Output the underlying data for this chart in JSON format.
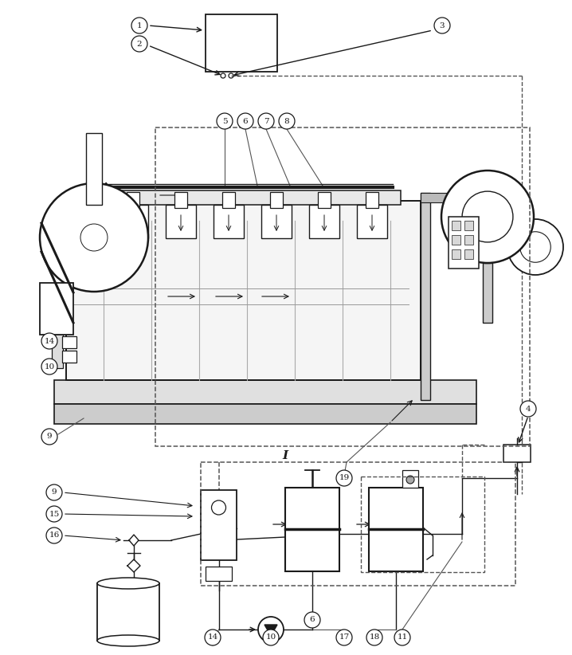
{
  "bg_color": "#ffffff",
  "line_color": "#1a1a1a",
  "fig_width": 7.18,
  "fig_height": 8.22,
  "dpi": 100,
  "label_I": "I"
}
